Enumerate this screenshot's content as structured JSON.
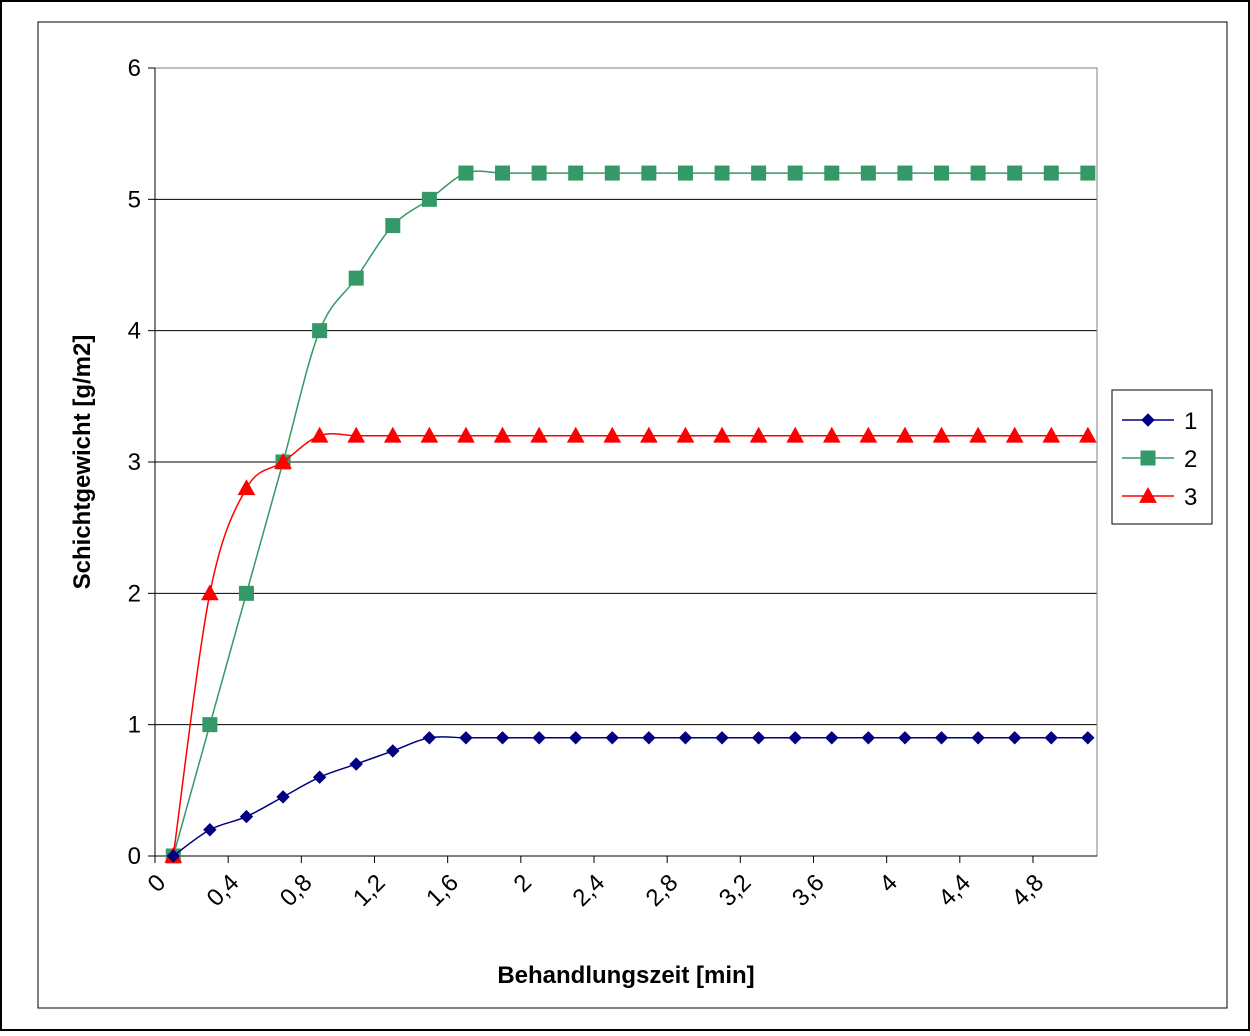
{
  "chart_data": {
    "type": "line",
    "title": "",
    "xlabel": "Behandlungszeit [min]",
    "ylabel": "Schichtgewicht [g/m2]",
    "ylim": [
      0,
      6
    ],
    "y_ticks": [
      0,
      1,
      2,
      3,
      4,
      5,
      6
    ],
    "y_tick_labels": [
      "0",
      "1",
      "2",
      "3",
      "4",
      "5",
      "6"
    ],
    "x_tick_labels": [
      "0",
      "0,4",
      "0,8",
      "1,2",
      "1,6",
      "2",
      "2,4",
      "2,8",
      "3,2",
      "3,6",
      "4",
      "4,4",
      "4,8"
    ],
    "x_tick_values": [
      0,
      0.4,
      0.8,
      1.2,
      1.6,
      2.0,
      2.4,
      2.8,
      3.2,
      3.6,
      4.0,
      4.4,
      4.8
    ],
    "xlim": [
      0,
      5.15
    ],
    "x": [
      0.1,
      0.3,
      0.5,
      0.7,
      0.9,
      1.1,
      1.3,
      1.5,
      1.7,
      1.9,
      2.1,
      2.3,
      2.5,
      2.7,
      2.9,
      3.1,
      3.3,
      3.5,
      3.7,
      3.9,
      4.1,
      4.3,
      4.5,
      4.7,
      4.9,
      5.1
    ],
    "grid": "horizontal",
    "legend_position": "right",
    "series": [
      {
        "name": "1",
        "color": "#000080",
        "marker": "diamond",
        "values": [
          0,
          0.2,
          0.3,
          0.45,
          0.6,
          0.7,
          0.8,
          0.9,
          0.9,
          0.9,
          0.9,
          0.9,
          0.9,
          0.9,
          0.9,
          0.9,
          0.9,
          0.9,
          0.9,
          0.9,
          0.9,
          0.9,
          0.9,
          0.9,
          0.9,
          0.9
        ]
      },
      {
        "name": "2",
        "color": "#339966",
        "marker": "square",
        "values": [
          0,
          1,
          2,
          3,
          4,
          4.4,
          4.8,
          5,
          5.2,
          5.2,
          5.2,
          5.2,
          5.2,
          5.2,
          5.2,
          5.2,
          5.2,
          5.2,
          5.2,
          5.2,
          5.2,
          5.2,
          5.2,
          5.2,
          5.2,
          5.2
        ]
      },
      {
        "name": "3",
        "color": "#ff0000",
        "marker": "triangle",
        "values": [
          0,
          2,
          2.8,
          3,
          3.2,
          3.2,
          3.2,
          3.2,
          3.2,
          3.2,
          3.2,
          3.2,
          3.2,
          3.2,
          3.2,
          3.2,
          3.2,
          3.2,
          3.2,
          3.2,
          3.2,
          3.2,
          3.2,
          3.2,
          3.2,
          3.2
        ]
      }
    ]
  }
}
